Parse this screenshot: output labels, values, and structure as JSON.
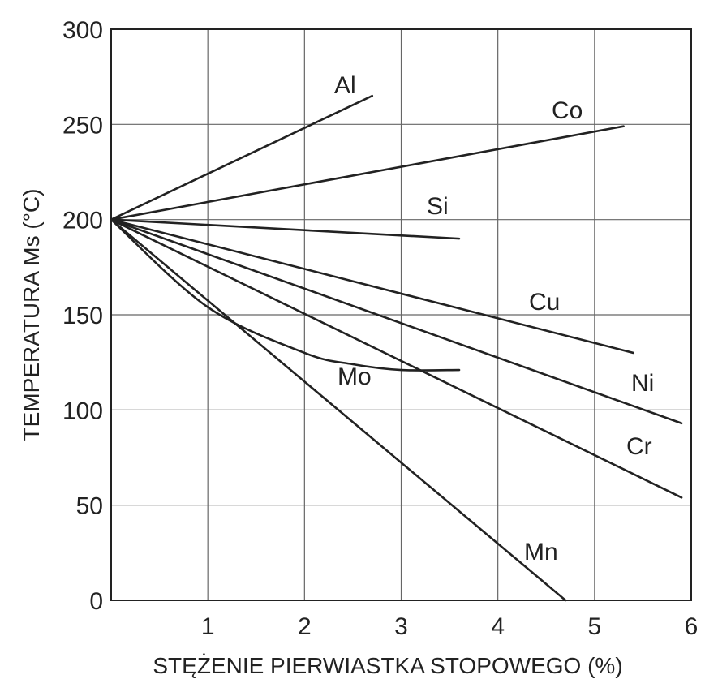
{
  "chart_data": {
    "type": "line",
    "title": "",
    "xlabel": "STĘŻENIE PIERWIASTKA STOPOWEGO (%)",
    "ylabel": "TEMPERATURA Ms  (°C)",
    "xlim": [
      0,
      6
    ],
    "ylim": [
      0,
      300
    ],
    "grid": true,
    "legend": "none (series labeled inline)",
    "x_ticks": [
      "1",
      "2",
      "3",
      "4",
      "5",
      "6"
    ],
    "y_ticks": [
      "0",
      "50",
      "100",
      "150",
      "200",
      "250",
      "300"
    ],
    "series": [
      {
        "name": "Al",
        "points": [
          [
            0,
            200
          ],
          [
            2.7,
            265
          ]
        ]
      },
      {
        "name": "Co",
        "points": [
          [
            0,
            200
          ],
          [
            5.3,
            249
          ]
        ]
      },
      {
        "name": "Si",
        "points": [
          [
            0,
            200
          ],
          [
            3.6,
            190
          ]
        ]
      },
      {
        "name": "Cu",
        "points": [
          [
            0,
            200
          ],
          [
            5.4,
            130
          ]
        ]
      },
      {
        "name": "Ni",
        "points": [
          [
            0,
            200
          ],
          [
            5.9,
            93
          ]
        ]
      },
      {
        "name": "Cr",
        "points": [
          [
            0,
            200
          ],
          [
            5.9,
            54
          ]
        ]
      },
      {
        "name": "Mo",
        "points": [
          [
            0,
            200
          ],
          [
            1.0,
            154
          ],
          [
            2.0,
            130
          ],
          [
            2.5,
            124
          ],
          [
            3.0,
            121
          ],
          [
            3.6,
            121
          ]
        ]
      },
      {
        "name": "Mn",
        "points": [
          [
            0,
            200
          ],
          [
            4.7,
            0
          ]
        ]
      }
    ]
  },
  "colors": {
    "line": "#222222",
    "grid": "#666666",
    "background": "#ffffff"
  }
}
